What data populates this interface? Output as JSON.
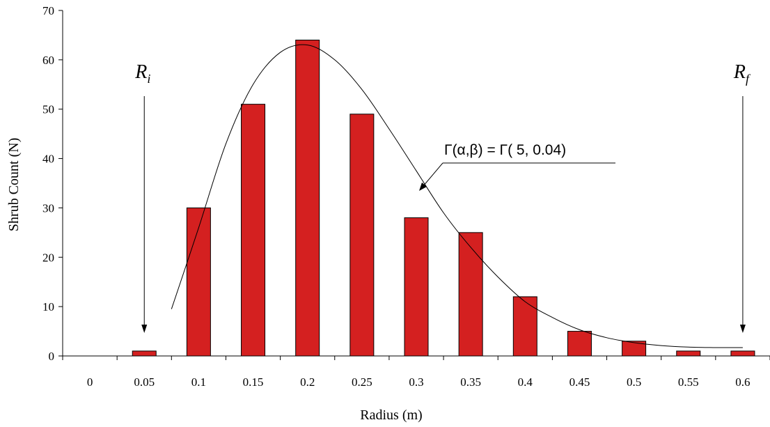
{
  "chart_data": {
    "type": "bar",
    "categories": [
      "0",
      "0.05",
      "0.1",
      "0.15",
      "0.2",
      "0.25",
      "0.3",
      "0.35",
      "0.4",
      "0.45",
      "0.5",
      "0.55",
      "0.6"
    ],
    "values": [
      0,
      1,
      30,
      51,
      64,
      49,
      28,
      25,
      12,
      5,
      3,
      1,
      1
    ],
    "xlabel": "Radius (m)",
    "ylabel": "Shrub Count (N)",
    "ylim": [
      0,
      70
    ],
    "yticks": [
      0,
      10,
      20,
      30,
      40,
      50,
      60,
      70
    ],
    "bar_color": "#d42020",
    "grid": false,
    "legend": "none",
    "fit_curve": {
      "label": "Γ(α,β) = Γ( 5, 0.04)",
      "x": [
        0.075,
        0.1,
        0.125,
        0.15,
        0.175,
        0.2,
        0.225,
        0.25,
        0.275,
        0.3,
        0.325,
        0.35,
        0.375,
        0.4,
        0.425,
        0.45,
        0.475,
        0.5,
        0.525,
        0.55,
        0.575,
        0.6
      ],
      "y": [
        9.5,
        26,
        43,
        55,
        61.5,
        63,
        60,
        54,
        46,
        37.5,
        29,
        22,
        16,
        11,
        7.8,
        5.3,
        3.7,
        2.7,
        2.1,
        1.8,
        1.7,
        1.7
      ]
    },
    "annotations": [
      {
        "base": "R",
        "sub": "i",
        "x": 0.05
      },
      {
        "base": "R",
        "sub": "f",
        "x": 0.6
      }
    ]
  }
}
